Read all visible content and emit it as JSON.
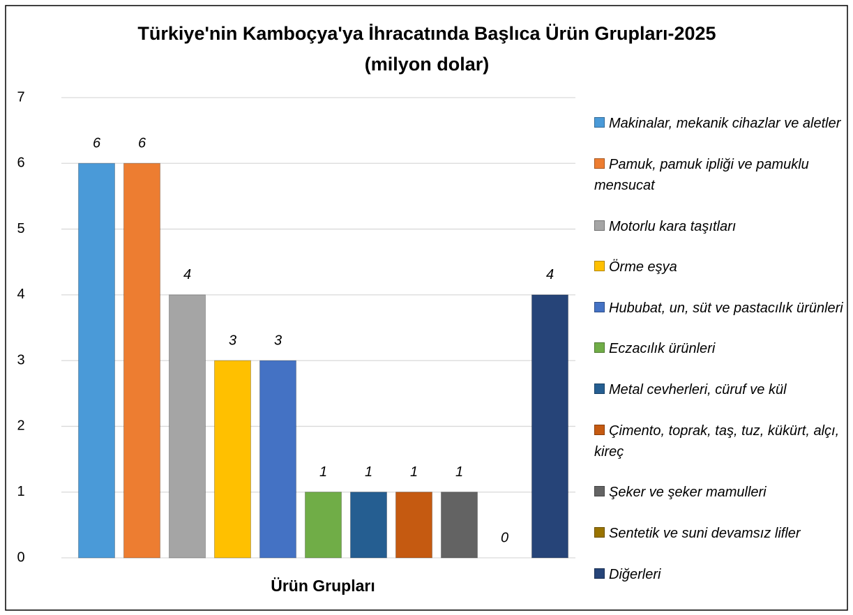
{
  "chart_data": {
    "type": "bar",
    "title": "Türkiye'nin Kamboçya'ya İhracatında Başlıca Ürün Grupları-2025",
    "subtitle": "(milyon dolar)",
    "x_label": "Ürün Grupları",
    "ylim": [
      0,
      7
    ],
    "yticks": [
      0,
      1,
      2,
      3,
      4,
      5,
      6,
      7
    ],
    "grid": true,
    "legend": "right",
    "series": [
      {
        "name": "Makinalar, mekanik cihazlar ve aletler",
        "color": "#4a9ad8",
        "values": [
          6
        ]
      },
      {
        "name": "Pamuk, pamuk ipliği ve pamuklu mensucat",
        "color": "#ed7d31",
        "values": [
          6
        ]
      },
      {
        "name": "Motorlu kara taşıtları",
        "color": "#a5a5a5",
        "values": [
          4
        ]
      },
      {
        "name": "Örme eşya",
        "color": "#ffc000",
        "values": [
          3
        ]
      },
      {
        "name": "Hububat, un, süt ve pastacılık ürünleri",
        "color": "#4472c4",
        "values": [
          3
        ]
      },
      {
        "name": "Eczacılık ürünleri",
        "color": "#70ad47",
        "values": [
          1
        ]
      },
      {
        "name": "Metal cevherleri, cüruf ve kül",
        "color": "#255e91",
        "values": [
          1
        ]
      },
      {
        "name": "Çimento, toprak, taş, tuz, kükürt, alçı, kireç",
        "color": "#c55a11",
        "values": [
          1
        ]
      },
      {
        "name": "Şeker ve şeker mamulleri",
        "color": "#636363",
        "values": [
          1
        ]
      },
      {
        "name": "Sentetik ve suni devamsız lifler",
        "color": "#997300",
        "values": [
          0
        ]
      },
      {
        "name": "Diğerleri",
        "color": "#264478",
        "values": [
          4
        ]
      }
    ]
  }
}
